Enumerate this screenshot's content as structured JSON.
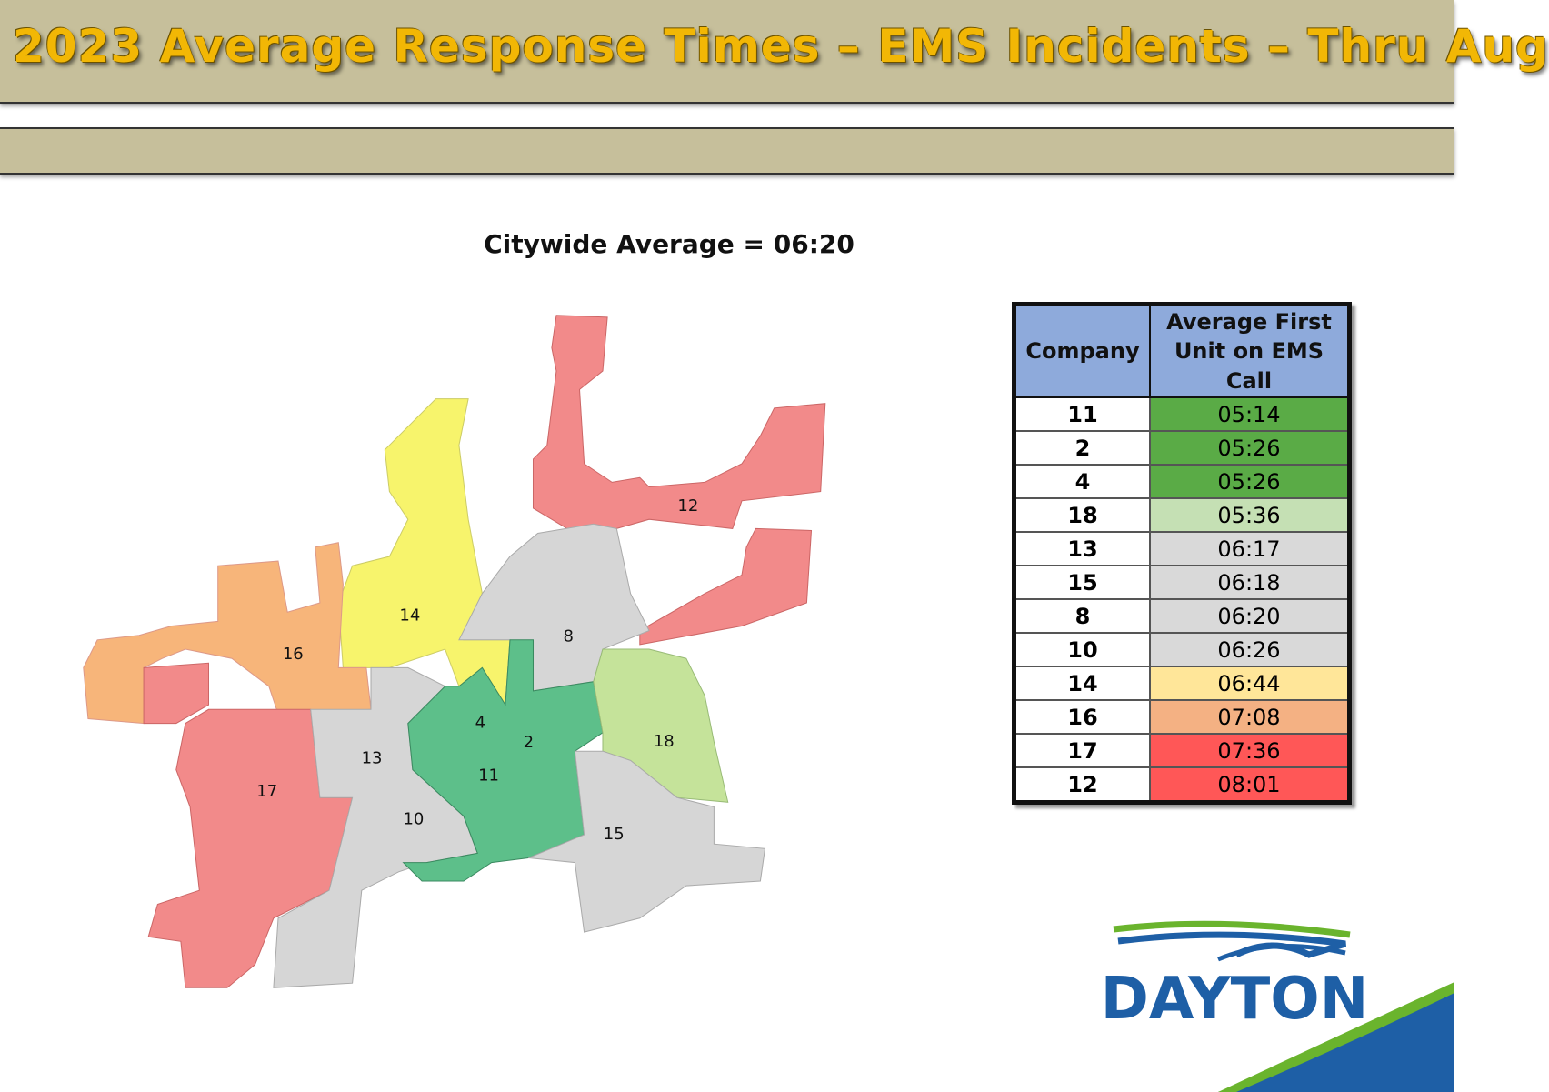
{
  "header": {
    "title": "2023 Average Response Times – EMS Incidents – Thru Aug"
  },
  "subtitle": "Citywide Average = 06:20",
  "map": {
    "labels": [
      "12",
      "14",
      "16",
      "8",
      "4",
      "2",
      "18",
      "13",
      "11",
      "17",
      "10",
      "15"
    ]
  },
  "table": {
    "columns": [
      "Company",
      "Average First Unit on EMS Call"
    ],
    "rows": [
      [
        "11",
        "05:14"
      ],
      [
        "2",
        "05:26"
      ],
      [
        "4",
        "05:26"
      ],
      [
        "18",
        "05:36"
      ],
      [
        "13",
        "06:17"
      ],
      [
        "15",
        "06:18"
      ],
      [
        "8",
        "06:20"
      ],
      [
        "10",
        "06:26"
      ],
      [
        "14",
        "06:44"
      ],
      [
        "16",
        "07:08"
      ],
      [
        "17",
        "07:36"
      ],
      [
        "12",
        "08:01"
      ]
    ]
  },
  "logo": {
    "text": "DAYTON"
  }
}
